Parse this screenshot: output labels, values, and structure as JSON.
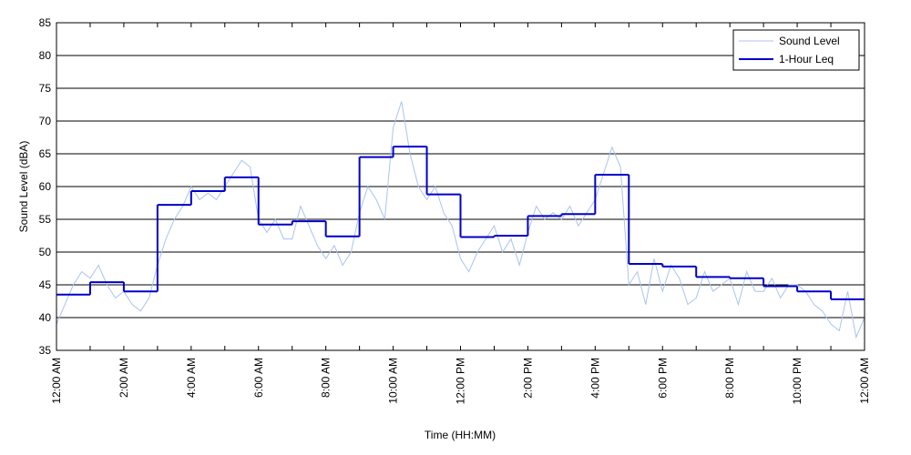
{
  "chart_data": {
    "type": "line",
    "xlabel": "Time (HH:MM)",
    "ylabel": "Sound Level (dBA)",
    "xlim": [
      0,
      24
    ],
    "ylim": [
      35,
      85
    ],
    "xticks": [
      {
        "value": 0,
        "label": "12:00 AM"
      },
      {
        "value": 2,
        "label": "2:00 AM"
      },
      {
        "value": 4,
        "label": "4:00 AM"
      },
      {
        "value": 6,
        "label": "6:00 AM"
      },
      {
        "value": 8,
        "label": "8:00 AM"
      },
      {
        "value": 10,
        "label": "10:00 AM"
      },
      {
        "value": 12,
        "label": "12:00 PM"
      },
      {
        "value": 14,
        "label": "2:00 PM"
      },
      {
        "value": 16,
        "label": "4:00 PM"
      },
      {
        "value": 18,
        "label": "6:00 PM"
      },
      {
        "value": 20,
        "label": "8:00 PM"
      },
      {
        "value": 22,
        "label": "10:00 PM"
      },
      {
        "value": 24,
        "label": "12:00 AM"
      }
    ],
    "xminor_ticks": [
      1,
      3,
      5,
      7,
      9,
      11,
      13,
      15,
      17,
      19,
      21,
      23
    ],
    "yticks": [
      35,
      40,
      45,
      50,
      55,
      60,
      65,
      70,
      75,
      80,
      85
    ],
    "grid": "y",
    "legend": "upper right",
    "series": [
      {
        "name": "Sound Level",
        "color": "#a9c4f0",
        "drawstyle": "line",
        "x": [
          0,
          0.25,
          0.5,
          0.75,
          1,
          1.25,
          1.5,
          1.75,
          2,
          2.25,
          2.5,
          2.75,
          3,
          3.25,
          3.5,
          3.75,
          4,
          4.25,
          4.5,
          4.75,
          5,
          5.25,
          5.5,
          5.75,
          6,
          6.25,
          6.5,
          6.75,
          7,
          7.25,
          7.5,
          7.75,
          8,
          8.25,
          8.5,
          8.75,
          9,
          9.25,
          9.5,
          9.75,
          10,
          10.25,
          10.5,
          10.75,
          11,
          11.25,
          11.5,
          11.75,
          12,
          12.25,
          12.5,
          12.75,
          13,
          13.25,
          13.5,
          13.75,
          14,
          14.25,
          14.5,
          14.75,
          15,
          15.25,
          15.5,
          15.75,
          16,
          16.25,
          16.5,
          16.75,
          17,
          17.25,
          17.5,
          17.75,
          18,
          18.25,
          18.5,
          18.75,
          19,
          19.25,
          19.5,
          19.75,
          20,
          20.25,
          20.5,
          20.75,
          21,
          21.25,
          21.5,
          21.75,
          22,
          22.25,
          22.5,
          22.75,
          23,
          23.25,
          23.5,
          23.75,
          24
        ],
        "values": [
          39,
          42,
          45,
          47,
          46,
          48,
          45,
          43,
          44,
          42,
          41,
          43,
          48,
          52,
          55,
          57,
          60,
          58,
          59,
          58,
          60,
          62,
          64,
          63,
          55,
          53,
          55,
          52,
          52,
          57,
          54,
          51,
          49,
          51,
          48,
          50,
          56,
          60,
          58,
          55,
          69,
          73,
          65,
          60,
          58,
          60,
          56,
          54,
          49,
          47,
          50,
          52,
          54,
          50,
          52,
          48,
          53,
          57,
          55,
          56,
          55,
          57,
          54,
          56,
          58,
          62,
          66,
          63,
          45,
          47,
          42,
          49,
          44,
          48,
          46,
          42,
          43,
          47,
          44,
          45,
          46,
          42,
          47,
          44,
          44,
          46,
          43,
          45,
          45,
          44,
          42,
          41,
          39,
          38,
          44,
          37,
          40
        ]
      },
      {
        "name": "1-Hour Leq",
        "color": "#0000cc",
        "drawstyle": "steps-post",
        "x": [
          0,
          1,
          2,
          3,
          4,
          5,
          6,
          7,
          8,
          9,
          10,
          11,
          12,
          13,
          14,
          15,
          16,
          17,
          18,
          19,
          20,
          21,
          22,
          23
        ],
        "values": [
          43.5,
          45.4,
          44,
          57.2,
          59.3,
          61.4,
          54.2,
          54.7,
          52.4,
          64.5,
          66.1,
          58.8,
          52.3,
          52.5,
          55.5,
          55.8,
          61.8,
          48.2,
          47.8,
          46.2,
          46,
          44.8,
          44,
          42.8
        ]
      }
    ]
  }
}
